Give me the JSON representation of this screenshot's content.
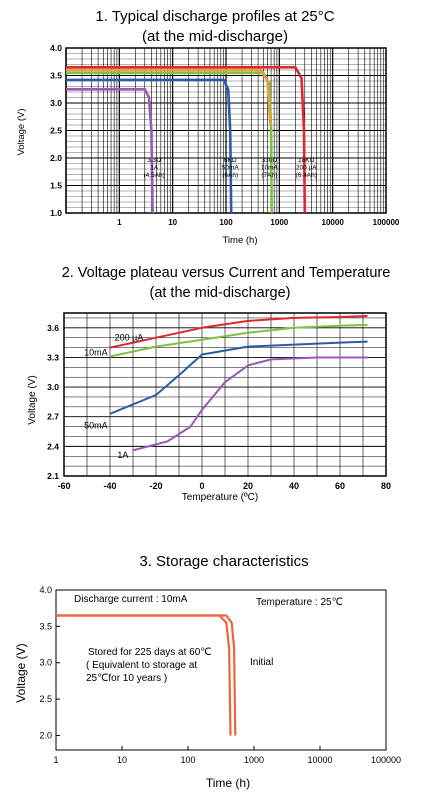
{
  "chart_data": [
    {
      "type": "line",
      "title": "1. Typical discharge profiles at 25°C",
      "subtitle": "(at  the mid-discharge)",
      "xlabel": "Time (h)",
      "ylabel": "Voltage (V)",
      "x_scale": "log",
      "xlim": [
        0.1,
        100000
      ],
      "ylim": [
        1.0,
        4.0
      ],
      "x_ticks": [
        "1",
        "10",
        "100",
        "1000",
        "10000",
        "100000"
      ],
      "x_tick_values": [
        1,
        10,
        100,
        1000,
        10000,
        100000
      ],
      "y_ticks": [
        "1.0",
        "1.5",
        "2.0",
        "2.5",
        "3.0",
        "3.5",
        "4.0"
      ],
      "y_tick_values": [
        1.0,
        1.5,
        2.0,
        2.5,
        3.0,
        3.5,
        4.0
      ],
      "grid": true,
      "series": [
        {
          "color": "#9b59b6",
          "plateau": 3.25,
          "x": [
            0.1,
            3.0,
            3.6,
            4.0,
            4.2
          ],
          "y": [
            3.25,
            3.25,
            3.1,
            2.5,
            1.0
          ]
        },
        {
          "color": "#2a5ca8",
          "plateau": 3.42,
          "x": [
            0.1,
            90,
            110,
            120,
            125
          ],
          "y": [
            3.42,
            3.42,
            3.25,
            2.5,
            1.0
          ]
        },
        {
          "color": "#7dc242",
          "plateau": 3.55,
          "x": [
            0.1,
            500,
            650,
            700,
            720
          ],
          "y": [
            3.55,
            3.55,
            3.35,
            2.5,
            1.0
          ]
        },
        {
          "color": "#e5a23a",
          "plateau": 3.6,
          "x": [
            0.1,
            450,
            600,
            680
          ],
          "y": [
            3.6,
            3.6,
            3.4,
            2.6
          ]
        },
        {
          "color": "#e0282e",
          "plateau": 3.65,
          "x": [
            0.1,
            2000,
            2600,
            2900,
            3000
          ],
          "y": [
            3.65,
            3.65,
            3.45,
            2.5,
            1.0
          ]
        }
      ],
      "annotations": [
        {
          "lines": [
            "3.3Ω",
            "1A",
            "(4.5Ah)"
          ],
          "x": 4.5,
          "y": 1.93
        },
        {
          "lines": [
            "6KΩ",
            "50mA",
            "(6Ah)"
          ],
          "x": 120,
          "y": 1.93
        },
        {
          "lines": [
            "330Ω",
            "10mA",
            "(7Ah)"
          ],
          "x": 650,
          "y": 1.93
        },
        {
          "lines": [
            "18KΩ",
            "200 µA",
            "(6.4Ah)"
          ],
          "x": 3200,
          "y": 1.93
        }
      ]
    },
    {
      "type": "line",
      "title": "2. Voltage plateau versus Current and Temperature",
      "subtitle": "(at the mid-discharge)",
      "xlabel": "Temperature (ºC)",
      "ylabel": "Voltage (V)",
      "xlim": [
        -60,
        80
      ],
      "ylim": [
        2.1,
        3.75
      ],
      "x_ticks": [
        "-60",
        "-40",
        "-20",
        "0",
        "20",
        "40",
        "60",
        "80"
      ],
      "x_tick_values": [
        -60,
        -40,
        -20,
        0,
        20,
        40,
        60,
        80
      ],
      "y_ticks": [
        "2.1",
        "2.4",
        "2.7",
        "3.0",
        "3.3",
        "3.6"
      ],
      "y_tick_values": [
        2.1,
        2.4,
        2.7,
        3.0,
        3.3,
        3.6
      ],
      "grid": true,
      "series": [
        {
          "name": "200 µA",
          "color": "#e0282e",
          "x": [
            -40,
            -20,
            0,
            20,
            40,
            60,
            72
          ],
          "y": [
            3.4,
            3.5,
            3.6,
            3.67,
            3.7,
            3.71,
            3.72
          ]
        },
        {
          "name": "10mA",
          "color": "#7dc242",
          "x": [
            -40,
            -20,
            0,
            20,
            40,
            60,
            72
          ],
          "y": [
            3.31,
            3.41,
            3.48,
            3.55,
            3.6,
            3.62,
            3.63
          ]
        },
        {
          "name": "50mA",
          "color": "#2a5ca8",
          "x": [
            -40,
            -20,
            -10,
            0,
            20,
            40,
            60,
            72
          ],
          "y": [
            2.73,
            2.92,
            3.12,
            3.33,
            3.41,
            3.43,
            3.45,
            3.46
          ]
        },
        {
          "name": "1A",
          "color": "#9b59b6",
          "x": [
            -30,
            -15,
            -5,
            0,
            10,
            20,
            30,
            50,
            72
          ],
          "y": [
            2.36,
            2.45,
            2.6,
            2.77,
            3.05,
            3.22,
            3.28,
            3.3,
            3.3
          ]
        }
      ]
    },
    {
      "type": "line",
      "title": "3. Storage characteristics",
      "xlabel": "Time (h)",
      "ylabel": "Voltage (V)",
      "x_scale": "log",
      "xlim": [
        1,
        100000
      ],
      "ylim": [
        1.8,
        4.0
      ],
      "x_ticks": [
        "1",
        "10",
        "100",
        "1000",
        "10000",
        "100000"
      ],
      "x_tick_values": [
        1,
        10,
        100,
        1000,
        10000,
        100000
      ],
      "y_ticks": [
        "2.0",
        "2.5",
        "3.0",
        "3.5",
        "4.0"
      ],
      "y_tick_values": [
        2.0,
        2.5,
        3.0,
        3.5,
        4.0
      ],
      "grid": false,
      "series": [
        {
          "name": "Stored for 225 days at 60℃",
          "color": "#f0643a",
          "x": [
            1,
            300,
            380,
            420,
            440
          ],
          "y": [
            3.65,
            3.65,
            3.55,
            3.2,
            2.0
          ]
        },
        {
          "name": "Initial",
          "color": "#f0643a",
          "x": [
            1,
            380,
            460,
            500,
            520
          ],
          "y": [
            3.65,
            3.65,
            3.55,
            3.2,
            2.0
          ]
        }
      ],
      "annotations": {
        "discharge": "Discharge current : 10mA",
        "temperature": "Temperature : 25℃",
        "stored_lines": [
          "Stored for 225 days at 60℃",
          "( Equivalent to storage at",
          "25℃for 10 years )"
        ],
        "initial": "Initial"
      }
    }
  ]
}
